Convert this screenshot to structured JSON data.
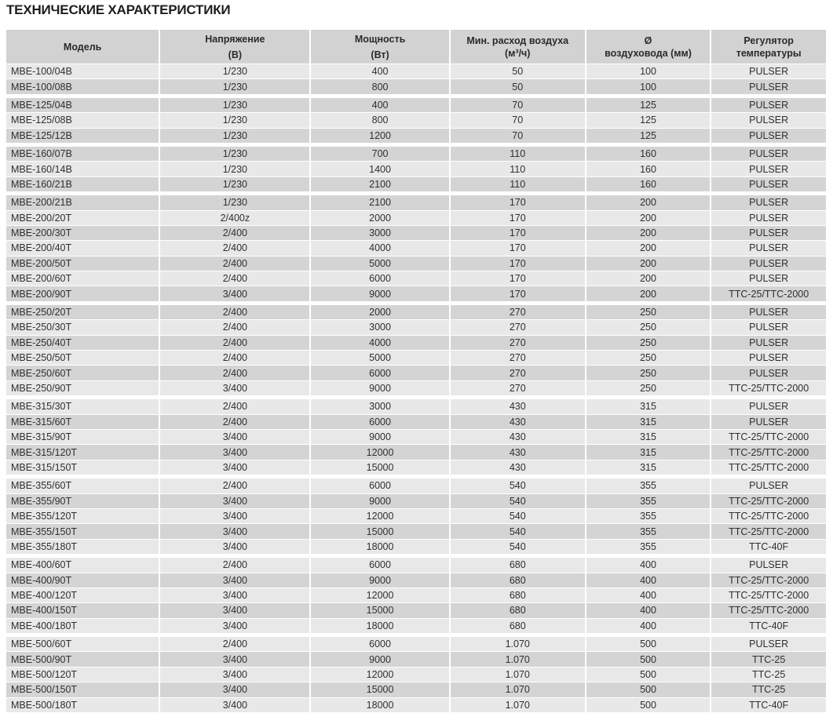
{
  "title": "ТЕХНИЧЕСКИЕ ХАРАКТЕРИСТИКИ",
  "columns": [
    {
      "line1": "Модель",
      "line2": ""
    },
    {
      "line1": "Напряжение",
      "line2": "(В)"
    },
    {
      "line1": "Мощность",
      "line2": "(Вт)"
    },
    {
      "line1": "Мин. расход воздуха",
      "line2": "(м³/ч)"
    },
    {
      "line1": "Ø",
      "line2": "воздуховода (мм)"
    },
    {
      "line1": "Регулятор",
      "line2": "температуры"
    }
  ],
  "groups": [
    [
      [
        "MBE-100/04B",
        "1/230",
        "400",
        "50",
        "100",
        "PULSER"
      ],
      [
        "MBE-100/08B",
        "1/230",
        "800",
        "50",
        "100",
        "PULSER"
      ]
    ],
    [
      [
        "MBE-125/04B",
        "1/230",
        "400",
        "70",
        "125",
        "PULSER"
      ],
      [
        "MBE-125/08B",
        "1/230",
        "800",
        "70",
        "125",
        "PULSER"
      ],
      [
        "MBE-125/12B",
        "1/230",
        "1200",
        "70",
        "125",
        "PULSER"
      ]
    ],
    [
      [
        "MBE-160/07B",
        "1/230",
        "700",
        "110",
        "160",
        "PULSER"
      ],
      [
        "MBE-160/14B",
        "1/230",
        "1400",
        "110",
        "160",
        "PULSER"
      ],
      [
        "MBE-160/21B",
        "1/230",
        "2100",
        "110",
        "160",
        "PULSER"
      ]
    ],
    [
      [
        "MBE-200/21B",
        "1/230",
        "2100",
        "170",
        "200",
        "PULSER"
      ],
      [
        "MBE-200/20T",
        "2/400z",
        "2000",
        "170",
        "200",
        "PULSER"
      ],
      [
        "MBE-200/30T",
        "2/400",
        "3000",
        "170",
        "200",
        "PULSER"
      ],
      [
        "MBE-200/40T",
        "2/400",
        "4000",
        "170",
        "200",
        "PULSER"
      ],
      [
        "MBE-200/50T",
        "2/400",
        "5000",
        "170",
        "200",
        "PULSER"
      ],
      [
        "MBE-200/60T",
        "2/400",
        "6000",
        "170",
        "200",
        "PULSER"
      ],
      [
        "MBE-200/90T",
        "3/400",
        "9000",
        "170",
        "200",
        "TTC-25/TTC-2000"
      ]
    ],
    [
      [
        "MBE-250/20T",
        "2/400",
        "2000",
        "270",
        "250",
        "PULSER"
      ],
      [
        "MBE-250/30T",
        "2/400",
        "3000",
        "270",
        "250",
        "PULSER"
      ],
      [
        "MBE-250/40T",
        "2/400",
        "4000",
        "270",
        "250",
        "PULSER"
      ],
      [
        "MBE-250/50T",
        "2/400",
        "5000",
        "270",
        "250",
        "PULSER"
      ],
      [
        "MBE-250/60T",
        "2/400",
        "6000",
        "270",
        "250",
        "PULSER"
      ],
      [
        "MBE-250/90T",
        "3/400",
        "9000",
        "270",
        "250",
        "TTC-25/TTC-2000"
      ]
    ],
    [
      [
        "MBE-315/30T",
        "2/400",
        "3000",
        "430",
        "315",
        "PULSER"
      ],
      [
        "MBE-315/60T",
        "2/400",
        "6000",
        "430",
        "315",
        "PULSER"
      ],
      [
        "MBE-315/90T",
        "3/400",
        "9000",
        "430",
        "315",
        "TTC-25/TTC-2000"
      ],
      [
        "MBE-315/120T",
        "3/400",
        "12000",
        "430",
        "315",
        "TTC-25/TTC-2000"
      ],
      [
        "MBE-315/150T",
        "3/400",
        "15000",
        "430",
        "315",
        "TTC-25/TTC-2000"
      ]
    ],
    [
      [
        "MBE-355/60T",
        "2/400",
        "6000",
        "540",
        "355",
        "PULSER"
      ],
      [
        "MBE-355/90T",
        "3/400",
        "9000",
        "540",
        "355",
        "TTC-25/TTC-2000"
      ],
      [
        "MBE-355/120T",
        "3/400",
        "12000",
        "540",
        "355",
        "TTC-25/TTC-2000"
      ],
      [
        "MBE-355/150T",
        "3/400",
        "15000",
        "540",
        "355",
        "TTC-25/TTC-2000"
      ],
      [
        "MBE-355/180T",
        "3/400",
        "18000",
        "540",
        "355",
        "TTC-40F"
      ]
    ],
    [
      [
        "MBE-400/60T",
        "2/400",
        "6000",
        "680",
        "400",
        "PULSER"
      ],
      [
        "MBE-400/90T",
        "3/400",
        "9000",
        "680",
        "400",
        "TTC-25/TTC-2000"
      ],
      [
        "MBE-400/120T",
        "3/400",
        "12000",
        "680",
        "400",
        "TTC-25/TTC-2000"
      ],
      [
        "MBE-400/150T",
        "3/400",
        "15000",
        "680",
        "400",
        "TTC-25/TTC-2000"
      ],
      [
        "MBE-400/180T",
        "3/400",
        "18000",
        "680",
        "400",
        "TTC-40F"
      ]
    ],
    [
      [
        "MBE-500/60T",
        "2/400",
        "6000",
        "1.070",
        "500",
        "PULSER"
      ],
      [
        "MBE-500/90T",
        "3/400",
        "9000",
        "1.070",
        "500",
        "TTC-25"
      ],
      [
        "MBE-500/120T",
        "3/400",
        "12000",
        "1.070",
        "500",
        "TTC-25"
      ],
      [
        "MBE-500/150T",
        "3/400",
        "15000",
        "1.070",
        "500",
        "TTC-25"
      ],
      [
        "MBE-500/180T",
        "3/400",
        "18000",
        "1.070",
        "500",
        "TTC-40F"
      ]
    ]
  ]
}
